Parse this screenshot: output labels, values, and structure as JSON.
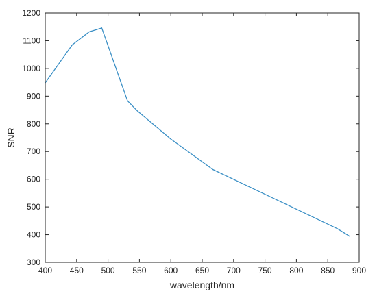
{
  "chart_data": {
    "type": "line",
    "title": "",
    "xlabel": "wavelength/nm",
    "ylabel": "SNR",
    "xlim": [
      400,
      900
    ],
    "ylim": [
      300,
      1200
    ],
    "xticks": [
      400,
      450,
      500,
      550,
      600,
      650,
      700,
      750,
      800,
      850,
      900
    ],
    "yticks": [
      300,
      400,
      500,
      600,
      700,
      800,
      900,
      1000,
      1100,
      1200
    ],
    "grid": false,
    "box": true,
    "series": [
      {
        "color": "#3a8fc5",
        "x": [
          400,
          443,
          470,
          490,
          531,
          547,
          600,
          667,
          865,
          885
        ],
        "y": [
          948,
          1085,
          1132,
          1146,
          883,
          846,
          745,
          635,
          422,
          394
        ]
      }
    ]
  }
}
